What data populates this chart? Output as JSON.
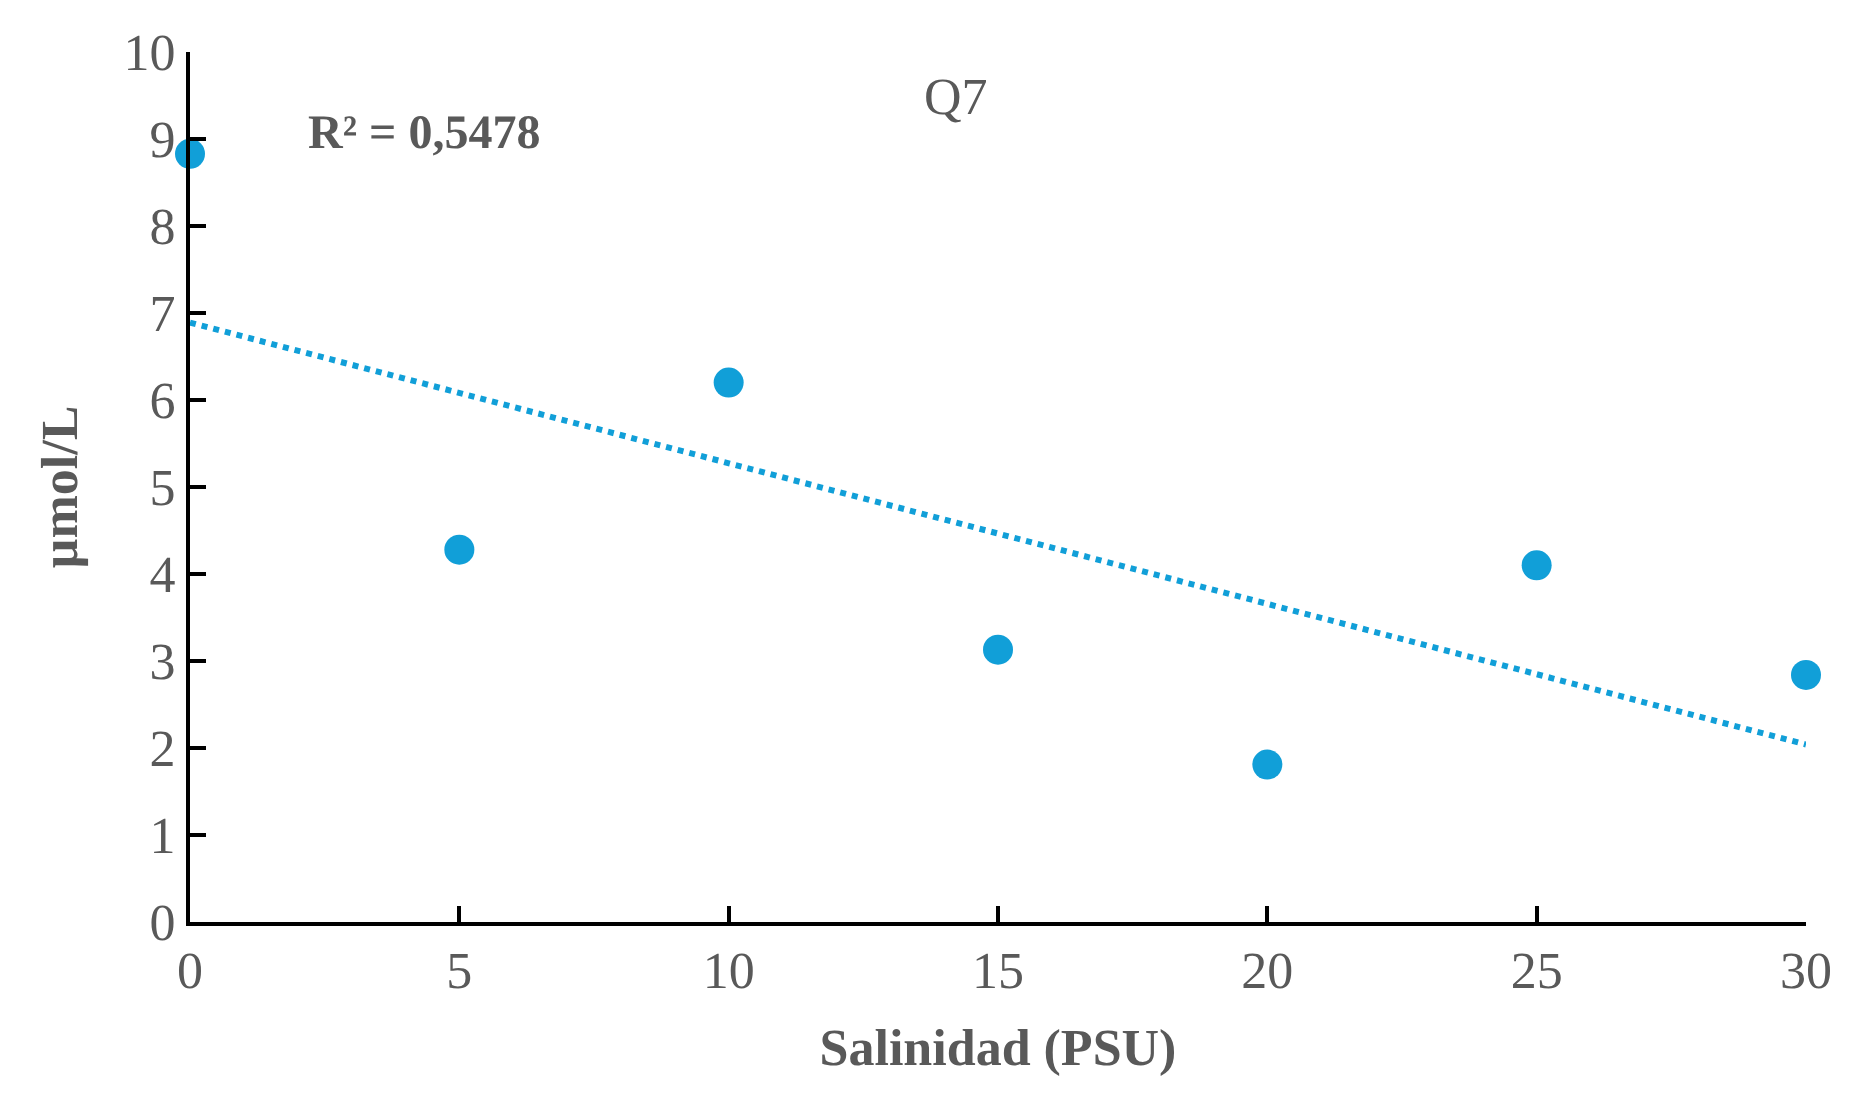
{
  "chart_data": {
    "type": "scatter",
    "title": "Q7",
    "xlabel": "Salinidad (PSU)",
    "ylabel": "µmol/L",
    "x": [
      0,
      5,
      10,
      15,
      20,
      25,
      30
    ],
    "series": [
      {
        "color": "#119fd8",
        "values": [
          8.83,
          4.28,
          6.2,
          3.13,
          1.81,
          4.1,
          2.84
        ],
        "marker": "circle"
      },
      {
        "type": "line",
        "x": [
          0,
          30
        ],
        "color": "#119fd8",
        "values": [
          6.89,
          2.04
        ],
        "line_style": "dotted",
        "marker": "none"
      }
    ],
    "annotations": [
      "R² = 0,5478"
    ],
    "xlim": [
      0,
      30
    ],
    "xticks": [
      0,
      5,
      10,
      15,
      20,
      25,
      30
    ],
    "ylim": [
      0,
      10
    ],
    "yticks": [
      0,
      1,
      2,
      3,
      4,
      5,
      6,
      7,
      8,
      9,
      10
    ],
    "grid": false,
    "legend": false
  }
}
